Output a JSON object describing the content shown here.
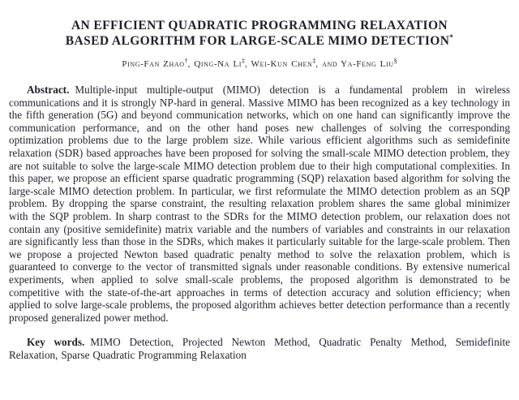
{
  "page": {
    "background": "#ffffff",
    "text_color": "#232330",
    "heading_color": "#1e1e2a"
  },
  "title": {
    "line1": "AN EFFICIENT QUADRATIC PROGRAMMING RELAXATION",
    "line2": "BASED ALGORITHM FOR LARGE-SCALE MIMO DETECTION",
    "footnote_mark": "*"
  },
  "authors": {
    "list": [
      {
        "name": "Ping-Fan Zhao",
        "mark": "†",
        "sep": ", "
      },
      {
        "name": "Qing-Na Li",
        "mark": "‡",
        "sep": ", "
      },
      {
        "name": "Wei-Kun Chen",
        "mark": "‡",
        "sep": ", and "
      },
      {
        "name": "Ya-Feng Liu",
        "mark": "§",
        "sep": ""
      }
    ]
  },
  "abstract": {
    "label": "Abstract.",
    "text": "Multiple-input multiple-output (MIMO) detection is a fundamental problem in wireless communications and it is strongly NP-hard in general. Massive MIMO has been recognized as a key technology in the fifth generation (5G) and beyond communication networks, which on one hand can significantly improve the communication performance, and on the other hand poses new challenges of solving the corresponding optimization problems due to the large problem size. While various efficient algorithms such as semidefinite relaxation (SDR) based approaches have been proposed for solving the small-scale MIMO detection problem, they are not suitable to solve the large-scale MIMO detection problem due to their high computational complexities. In this paper, we propose an efficient sparse quadratic programming (SQP) relaxation based algorithm for solving the large-scale MIMO detection problem. In particular, we first reformulate the MIMO detection problem as an SQP problem. By dropping the sparse constraint, the resulting relaxation problem shares the same global minimizer with the SQP problem. In sharp contrast to the SDRs for the MIMO detection problem, our relaxation does not contain any (positive semidefinite) matrix variable and the numbers of variables and constraints in our relaxation are significantly less than those in the SDRs, which makes it particularly suitable for the large-scale problem. Then we propose a projected Newton based quadratic penalty method to solve the relaxation problem, which is guaranteed to converge to the vector of transmitted signals under reasonable conditions. By extensive numerical experiments, when applied to solve small-scale problems, the proposed algorithm is demonstrated to be competitive with the state-of-the-art approaches in terms of detection accuracy and solution efficiency; when applied to solve large-scale problems, the proposed algorithm achieves better detection performance than a recently proposed generalized power method."
  },
  "keywords": {
    "label": "Key words.",
    "text": "MIMO Detection, Projected Newton Method, Quadratic Penalty Method, Semidefinite Relaxation, Sparse Quadratic Programming Relaxation"
  }
}
